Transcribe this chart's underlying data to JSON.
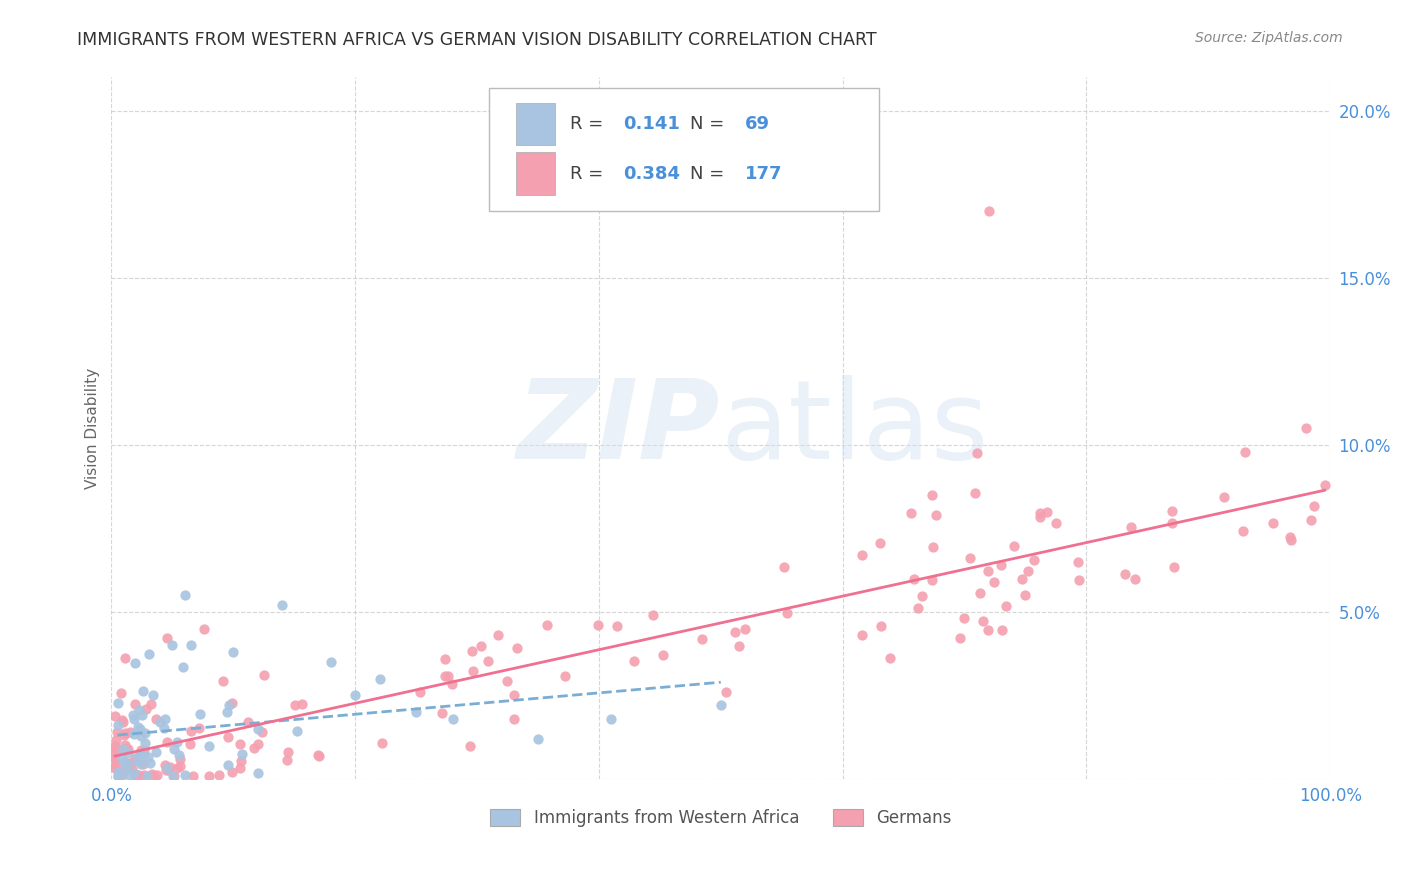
{
  "title": "IMMIGRANTS FROM WESTERN AFRICA VS GERMAN VISION DISABILITY CORRELATION CHART",
  "source": "Source: ZipAtlas.com",
  "ylabel": "Vision Disability",
  "xlim": [
    0.0,
    1.0
  ],
  "ylim": [
    0.0,
    0.21
  ],
  "x_ticks": [
    0.0,
    0.2,
    0.4,
    0.6,
    0.8,
    1.0
  ],
  "x_tick_labels": [
    "0.0%",
    "",
    "",
    "",
    "",
    "100.0%"
  ],
  "y_ticks": [
    0.0,
    0.05,
    0.1,
    0.15,
    0.2
  ],
  "y_tick_labels": [
    "",
    "5.0%",
    "10.0%",
    "15.0%",
    "20.0%"
  ],
  "legend_blue_label": "Immigrants from Western Africa",
  "legend_pink_label": "Germans",
  "R_blue": "0.141",
  "N_blue": "69",
  "R_pink": "0.384",
  "N_pink": "177",
  "blue_color": [
    0.659,
    0.769,
    0.878,
    1.0
  ],
  "pink_color": [
    0.957,
    0.627,
    0.69,
    1.0
  ],
  "blue_line_color": [
    0.478,
    0.678,
    0.831,
    1.0
  ],
  "pink_line_color": [
    0.941,
    0.439,
    0.565,
    1.0
  ],
  "watermark_color": [
    0.82,
    0.882,
    0.941,
    0.45
  ],
  "background_color": "#ffffff",
  "grid_color": "#cccccc",
  "axis_tick_color": "#4a90d9",
  "title_color": "#333333",
  "stat_value_color": "#4a90d9",
  "stat_label_color": "#444444"
}
